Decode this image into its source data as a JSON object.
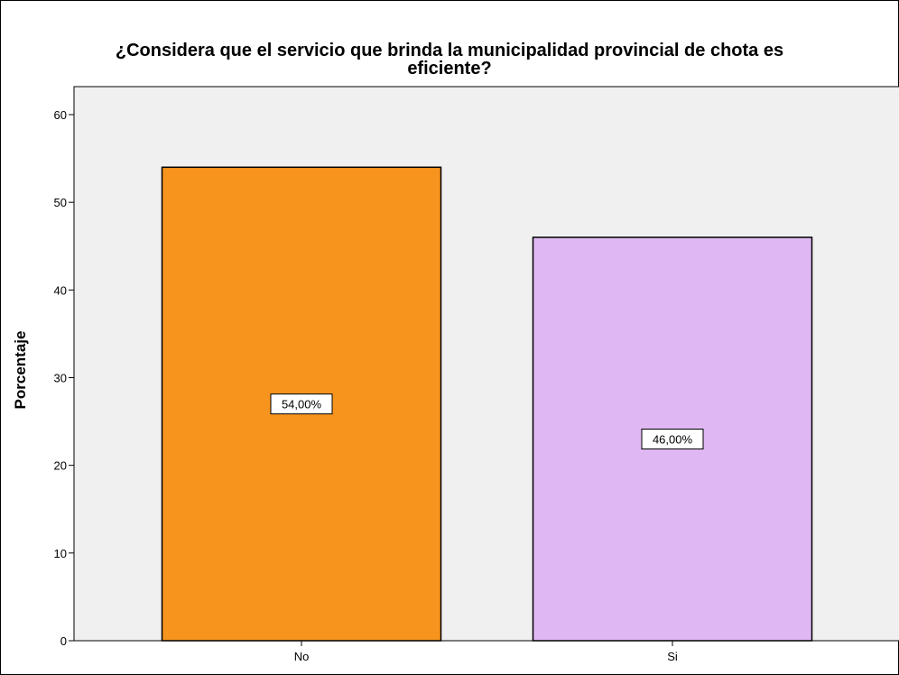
{
  "chart_data": {
    "type": "bar",
    "title": "¿Considera que el servicio que brinda la municipalidad provincial de chota es eficiente?",
    "title_lines": [
      "¿Considera que el servicio que brinda la municipalidad provincial de chota es",
      "eficiente?"
    ],
    "xlabel": "",
    "ylabel": "Porcentaje",
    "categories": [
      "No",
      "Si"
    ],
    "values": [
      54.0,
      46.0
    ],
    "data_labels": [
      "54,00%",
      "46,00%"
    ],
    "bar_colors": [
      "#f7941d",
      "#dfb8f3"
    ],
    "ylim": [
      0,
      60
    ],
    "yticks": [
      0,
      10,
      20,
      30,
      40,
      50,
      60
    ],
    "ytick_labels": [
      "0",
      "10",
      "20",
      "30",
      "40",
      "50",
      "60"
    ],
    "plot_background": "#f0f0f0",
    "grid": false,
    "legend": "none"
  }
}
